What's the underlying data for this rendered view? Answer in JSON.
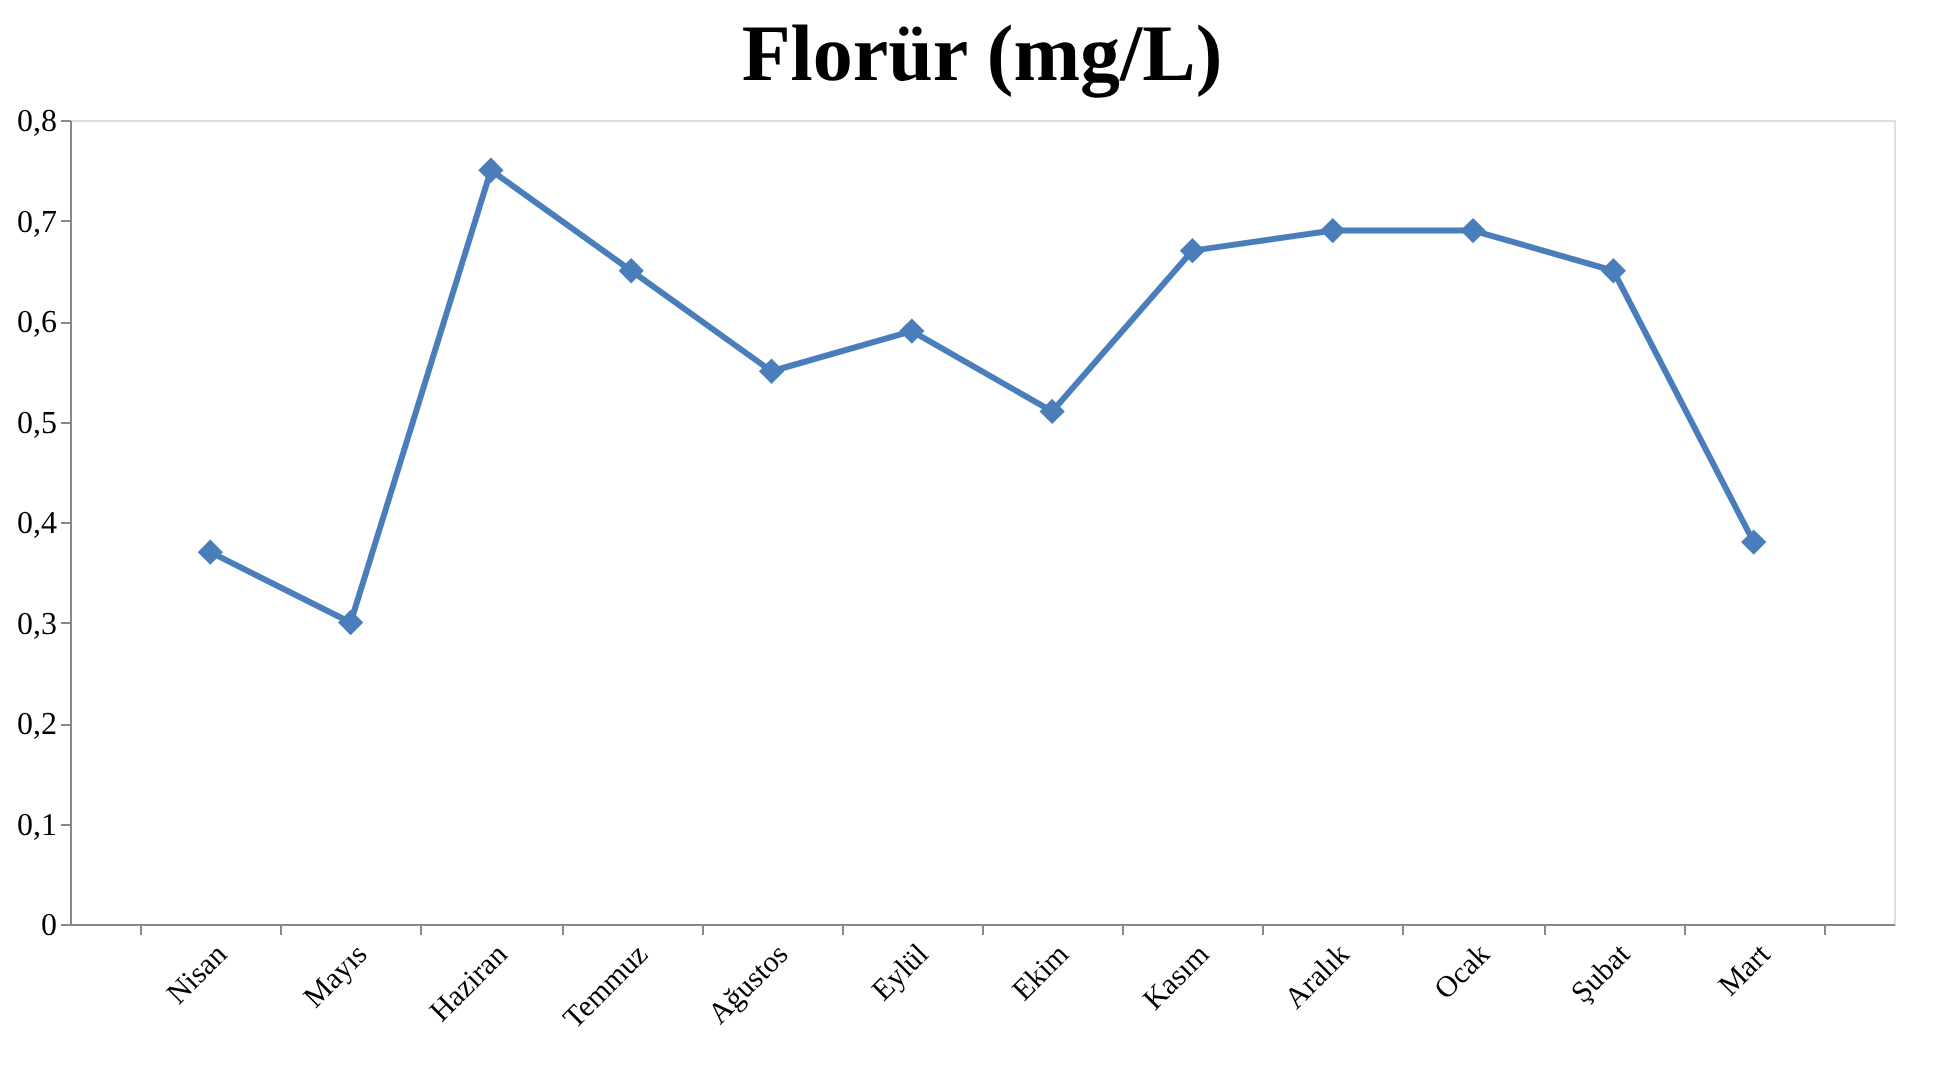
{
  "chart_data": {
    "type": "line",
    "title": "Florür (mg/L)",
    "categories": [
      "Nisan",
      "Mayıs",
      "Haziran",
      "Temmuz",
      "Ağustos",
      "Eylül",
      "Ekim",
      "Kasım",
      "Aralık",
      "Ocak",
      "Şubat",
      "Mart"
    ],
    "series": [
      {
        "color": "#4a7ebb",
        "values": [
          0.37,
          0.3,
          0.75,
          0.65,
          0.55,
          0.59,
          0.51,
          0.67,
          0.69,
          0.69,
          0.65,
          0.38
        ]
      }
    ],
    "ylim": [
      0,
      0.8
    ],
    "yticks": [
      0,
      {
        "value": 0.1,
        "label": "0,1"
      },
      {
        "value": 0.2,
        "label": "0,2"
      },
      {
        "value": 0.3,
        "label": "0,3"
      },
      {
        "value": 0.4,
        "label": "0,4"
      },
      {
        "value": 0.5,
        "label": "0,5"
      },
      {
        "value": 0.6,
        "label": "0,6"
      },
      {
        "value": 0.7,
        "label": "0,7"
      },
      {
        "value": 0.8,
        "label": "0,8"
      }
    ],
    "grid": false,
    "marker": "diamond",
    "line_style": "solid"
  }
}
